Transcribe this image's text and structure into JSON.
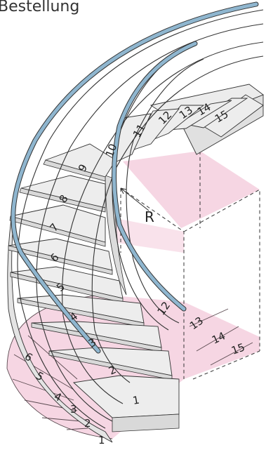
{
  "title": "Bestellung",
  "radius_label": "R",
  "colors": {
    "handrail": "#8fb6cf",
    "plan_fill": "#f6d6e3",
    "tread_fill": "#ededed",
    "outline": "#333333"
  },
  "step_labels": [
    "1",
    "2",
    "3",
    "4",
    "5",
    "6",
    "7",
    "8",
    "9",
    "10",
    "11",
    "12",
    "13",
    "14",
    "15"
  ],
  "plan_labels": [
    "1",
    "2",
    "3",
    "4",
    "5",
    "6",
    "12",
    "13",
    "14",
    "15"
  ]
}
